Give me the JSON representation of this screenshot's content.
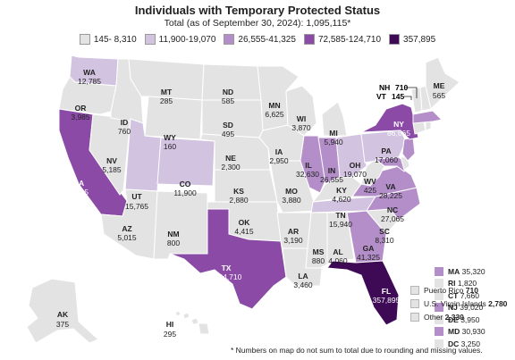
{
  "title": "Individuals with Temporary Protected Status",
  "subtitle": "Total (as of September 30, 2024): 1,095,115*",
  "colors": {
    "c1": "#e3e3e3",
    "c2": "#d2c3e0",
    "c3": "#b48ec9",
    "c4": "#8a4aa6",
    "c5": "#3e0a55",
    "outline": "#ffffff"
  },
  "legend": [
    {
      "label": "145- 8,310",
      "color": "#e3e3e3"
    },
    {
      "label": "11,900-19,070",
      "color": "#d2c3e0"
    },
    {
      "label": "26,555-41,325",
      "color": "#b48ec9"
    },
    {
      "label": "72,585-124,710",
      "color": "#8a4aa6"
    },
    {
      "label": "357,895",
      "color": "#3e0a55"
    }
  ],
  "states": {
    "WA": {
      "name": "WA",
      "value": "12,785"
    },
    "OR": {
      "name": "OR",
      "value": "3,985"
    },
    "CA": {
      "name": "CA",
      "value": "72,585"
    },
    "NV": {
      "name": "NV",
      "value": "5,185"
    },
    "ID": {
      "name": "ID",
      "value": "760"
    },
    "MT": {
      "name": "MT",
      "value": "285"
    },
    "WY": {
      "name": "WY",
      "value": "160"
    },
    "UT": {
      "name": "UT",
      "value": "15,765"
    },
    "AZ": {
      "name": "AZ",
      "value": "5,015"
    },
    "CO": {
      "name": "CO",
      "value": "11,900"
    },
    "NM": {
      "name": "NM",
      "value": "800"
    },
    "ND": {
      "name": "ND",
      "value": "585"
    },
    "SD": {
      "name": "SD",
      "value": "495"
    },
    "NE": {
      "name": "NE",
      "value": "2,300"
    },
    "KS": {
      "name": "KS",
      "value": "2,880"
    },
    "OK": {
      "name": "OK",
      "value": "4,415"
    },
    "TX": {
      "name": "TX",
      "value": "124,710"
    },
    "MN": {
      "name": "MN",
      "value": "6,625"
    },
    "IA": {
      "name": "IA",
      "value": "2,950"
    },
    "MO": {
      "name": "MO",
      "value": "3,880"
    },
    "AR": {
      "name": "AR",
      "value": "3,190"
    },
    "LA": {
      "name": "LA",
      "value": "3,460"
    },
    "WI": {
      "name": "WI",
      "value": "3,870"
    },
    "IL": {
      "name": "IL",
      "value": "32,630"
    },
    "MI": {
      "name": "MI",
      "value": "5,940"
    },
    "IN": {
      "name": "IN",
      "value": "26,555"
    },
    "OH": {
      "name": "OH",
      "value": "19,070"
    },
    "KY": {
      "name": "KY",
      "value": "4,620"
    },
    "TN": {
      "name": "TN",
      "value": "15,940"
    },
    "MS": {
      "name": "MS",
      "value": "880"
    },
    "AL": {
      "name": "AL",
      "value": "4,060"
    },
    "GA": {
      "name": "GA",
      "value": "41,325"
    },
    "FL": {
      "name": "FL",
      "value": "357,895"
    },
    "SC": {
      "name": "SC",
      "value": "8,310"
    },
    "NC": {
      "name": "NC",
      "value": "27,065"
    },
    "VA": {
      "name": "VA",
      "value": "28,225"
    },
    "WV": {
      "name": "WV",
      "value": "425"
    },
    "PA": {
      "name": "PA",
      "value": "17,060"
    },
    "NY": {
      "name": "NY",
      "value": "86,665"
    },
    "ME": {
      "name": "ME",
      "value": "565"
    },
    "AK": {
      "name": "AK",
      "value": "375"
    },
    "HI": {
      "name": "HI",
      "value": "295"
    }
  },
  "callouts": {
    "NH": {
      "name": "NH",
      "value": "710"
    },
    "VT": {
      "name": "VT",
      "value": "145"
    }
  },
  "side_legend": [
    {
      "name": "MA",
      "value": "35,320",
      "color": "#b48ec9"
    },
    {
      "name": "RI",
      "value": "1,820",
      "color": "#e3e3e3"
    },
    {
      "name": "CT",
      "value": "7,660",
      "color": "#e3e3e3"
    },
    {
      "name": "NJ",
      "value": "39,020",
      "color": "#b48ec9"
    },
    {
      "name": "DE",
      "value": "3,950",
      "color": "#e3e3e3"
    },
    {
      "name": "MD",
      "value": "30,930",
      "color": "#b48ec9"
    },
    {
      "name": "DC",
      "value": "3,250",
      "color": "#e3e3e3"
    }
  ],
  "territories": [
    {
      "name": "Puerto Rico",
      "value": "710"
    },
    {
      "name": "U.S. Virgin Islands",
      "value": "2,780"
    },
    {
      "name": "Other",
      "value": "2,330"
    }
  ],
  "footnote": "* Numbers on map do not sum to total due to rounding and missing values."
}
